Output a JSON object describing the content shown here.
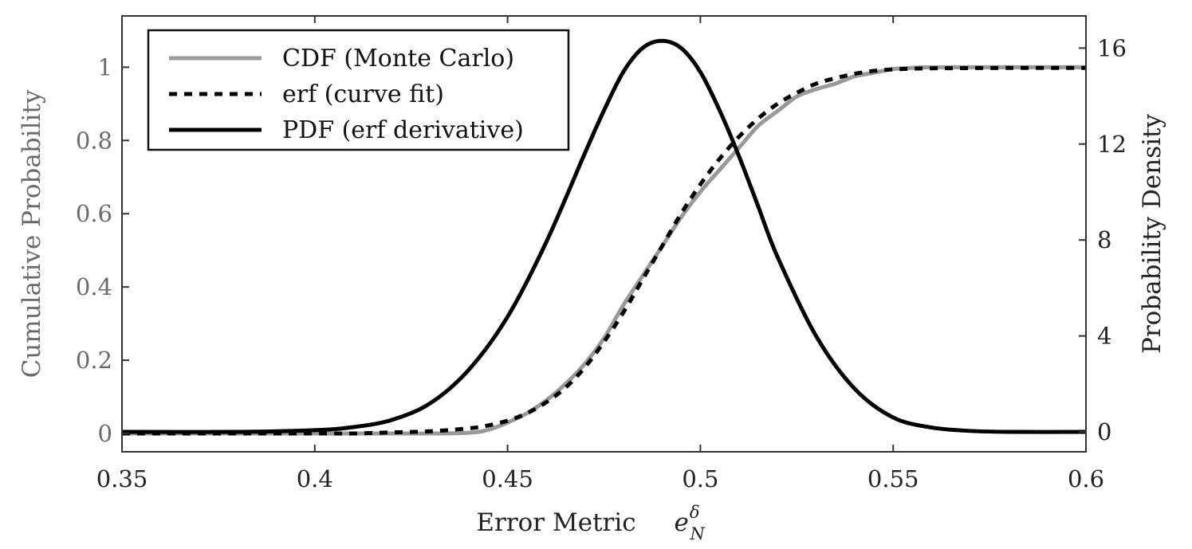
{
  "chart_data": {
    "type": "line",
    "title": "",
    "xlabel": "Error Metric",
    "xlabel_math": {
      "base": "e",
      "sup": "δ",
      "sub": "N"
    },
    "ylabel_left": "Cumulative Probability",
    "ylabel_right": "Probability Density",
    "xlim": [
      0.35,
      0.6
    ],
    "ylim_left": [
      -0.05,
      1.14
    ],
    "ylim_right": [
      -0.83,
      17.34
    ],
    "x_ticks": [
      0.35,
      0.4,
      0.45,
      0.5,
      0.55,
      0.6
    ],
    "x_tick_labels": [
      "0.35",
      "0.4",
      "0.45",
      "0.5",
      "0.55",
      "0.6"
    ],
    "y_left_ticks": [
      0,
      0.2,
      0.4,
      0.6,
      0.8,
      1
    ],
    "y_left_tick_labels": [
      "0",
      "0.2",
      "0.4",
      "0.6",
      "0.8",
      "1"
    ],
    "y_right_ticks": [
      0,
      4,
      8,
      12,
      16
    ],
    "y_right_tick_labels": [
      "0",
      "4",
      "8",
      "12",
      "16"
    ],
    "grid": false,
    "legend_position": "top-left",
    "series": [
      {
        "name": "CDF (Monte Carlo)",
        "axis": "left",
        "style": "solid",
        "color": "#999999",
        "x": [
          0.35,
          0.4,
          0.42,
          0.43,
          0.44,
          0.445,
          0.45,
          0.455,
          0.46,
          0.465,
          0.47,
          0.475,
          0.48,
          0.485,
          0.49,
          0.495,
          0.5,
          0.505,
          0.51,
          0.515,
          0.52,
          0.525,
          0.53,
          0.535,
          0.54,
          0.545,
          0.55,
          0.555,
          0.56,
          0.58,
          0.6
        ],
        "y": [
          0.0,
          0.0,
          0.0,
          0.0,
          0.002,
          0.01,
          0.03,
          0.055,
          0.09,
          0.135,
          0.19,
          0.26,
          0.35,
          0.43,
          0.51,
          0.59,
          0.66,
          0.72,
          0.78,
          0.84,
          0.88,
          0.92,
          0.94,
          0.955,
          0.975,
          0.985,
          0.995,
          0.998,
          1.0,
          1.0,
          1.0
        ]
      },
      {
        "name": "erf (curve fit)",
        "axis": "left",
        "style": "dashed",
        "color": "#000000",
        "x": [
          0.35,
          0.4,
          0.41,
          0.42,
          0.43,
          0.44,
          0.445,
          0.45,
          0.455,
          0.46,
          0.465,
          0.47,
          0.475,
          0.48,
          0.485,
          0.49,
          0.495,
          0.5,
          0.505,
          0.51,
          0.515,
          0.52,
          0.525,
          0.53,
          0.535,
          0.54,
          0.545,
          0.55,
          0.555,
          0.56,
          0.58,
          0.6
        ],
        "y": [
          0.0,
          0.0,
          0.0,
          0.003,
          0.006,
          0.014,
          0.022,
          0.035,
          0.055,
          0.085,
          0.125,
          0.18,
          0.25,
          0.33,
          0.42,
          0.51,
          0.6,
          0.68,
          0.75,
          0.81,
          0.86,
          0.9,
          0.93,
          0.955,
          0.97,
          0.982,
          0.99,
          0.994,
          0.996,
          0.997,
          0.998,
          0.998
        ]
      },
      {
        "name": "PDF (erf derivative)",
        "axis": "right",
        "style": "solid",
        "color": "#000000",
        "x": [
          0.35,
          0.38,
          0.4,
          0.41,
          0.42,
          0.43,
          0.44,
          0.45,
          0.46,
          0.47,
          0.475,
          0.48,
          0.485,
          0.49,
          0.495,
          0.5,
          0.505,
          0.51,
          0.515,
          0.52,
          0.53,
          0.54,
          0.55,
          0.56,
          0.57,
          0.58,
          0.6
        ],
        "y": [
          0.0,
          0.0,
          0.07,
          0.2,
          0.5,
          1.2,
          2.6,
          4.8,
          7.9,
          11.6,
          13.4,
          15.0,
          16.0,
          16.3,
          16.0,
          15.0,
          13.4,
          11.5,
          9.4,
          7.3,
          4.0,
          1.8,
          0.6,
          0.18,
          0.04,
          0.0,
          0.0
        ]
      }
    ]
  }
}
